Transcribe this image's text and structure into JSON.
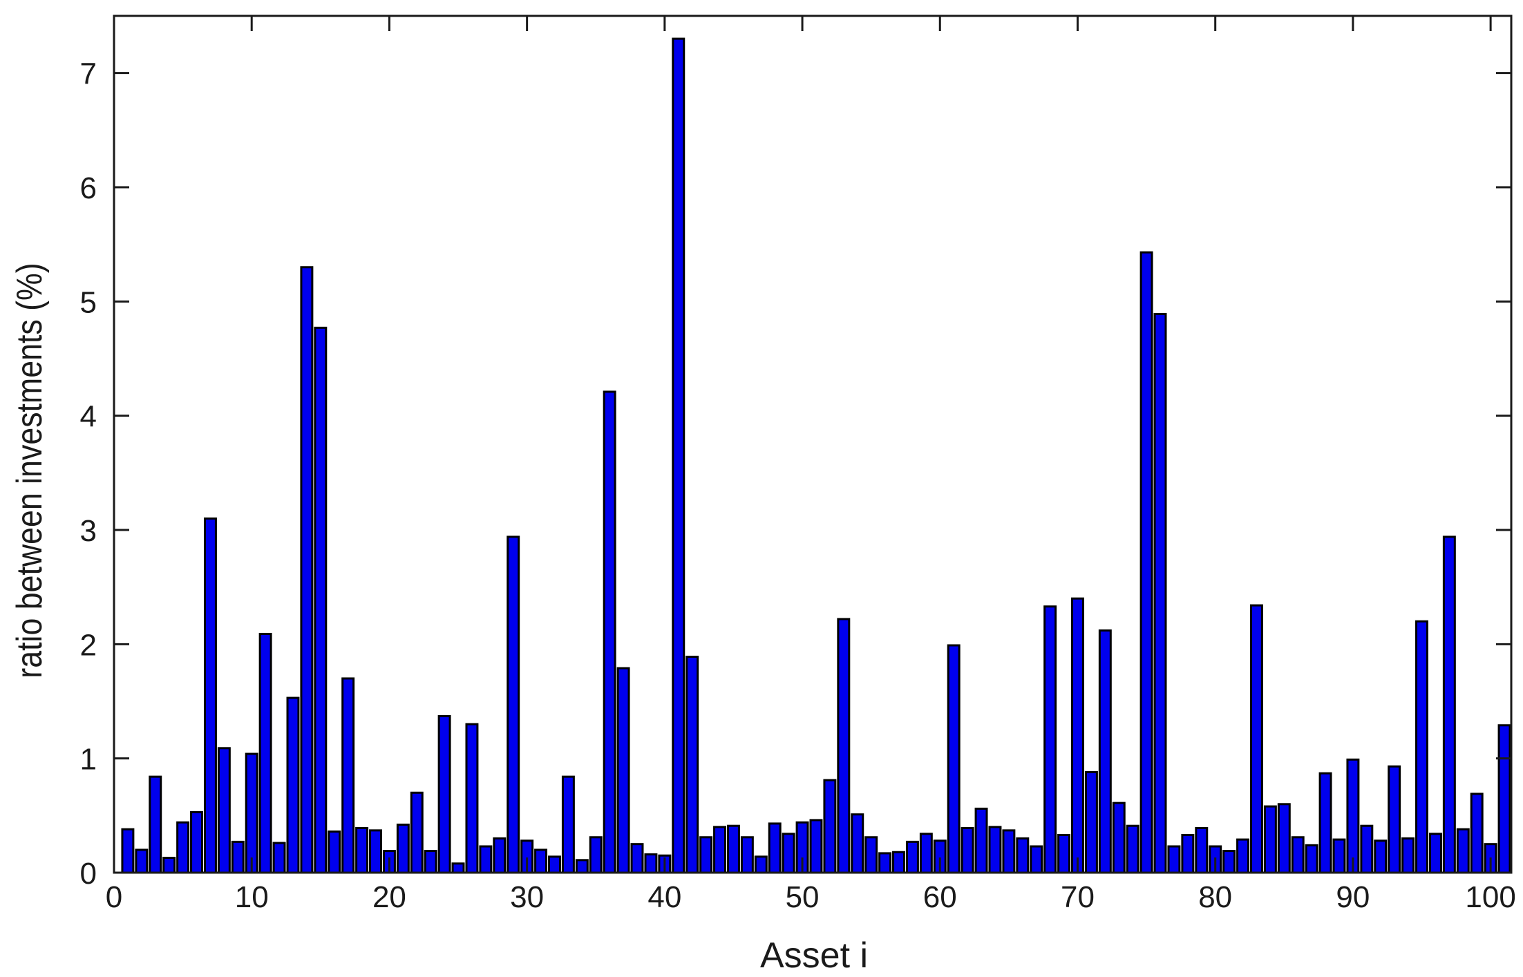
{
  "chart_data": {
    "type": "bar",
    "title": "",
    "xlabel": "Asset i",
    "ylabel": "ratio between investments (%)",
    "xlim": [
      0,
      101.5
    ],
    "ylim": [
      0,
      7.5
    ],
    "xticks": [
      0,
      10,
      20,
      30,
      40,
      50,
      60,
      70,
      80,
      90,
      100
    ],
    "yticks": [
      0,
      1,
      2,
      3,
      4,
      5,
      6,
      7
    ],
    "grid": false,
    "legend": "none",
    "bar_color": "#0000ee",
    "edge_color": "#000000",
    "categories": [
      1,
      2,
      3,
      4,
      5,
      6,
      7,
      8,
      9,
      10,
      11,
      12,
      13,
      14,
      15,
      16,
      17,
      18,
      19,
      20,
      21,
      22,
      23,
      24,
      25,
      26,
      27,
      28,
      29,
      30,
      31,
      32,
      33,
      34,
      35,
      36,
      37,
      38,
      39,
      40,
      41,
      42,
      43,
      44,
      45,
      46,
      47,
      48,
      49,
      50,
      51,
      52,
      53,
      54,
      55,
      56,
      57,
      58,
      59,
      60,
      61,
      62,
      63,
      64,
      65,
      66,
      67,
      68,
      69,
      70,
      71,
      72,
      73,
      74,
      75,
      76,
      77,
      78,
      79,
      80,
      81,
      82,
      83,
      84,
      85,
      86,
      87,
      88,
      89,
      90,
      91,
      92,
      93,
      94,
      95,
      96,
      97,
      98,
      99,
      100,
      101
    ],
    "values": [
      0.38,
      0.2,
      0.84,
      0.13,
      0.44,
      0.53,
      3.1,
      1.09,
      0.27,
      1.04,
      2.09,
      0.26,
      1.53,
      5.3,
      4.77,
      0.36,
      1.7,
      0.39,
      0.37,
      0.19,
      0.42,
      0.7,
      0.19,
      1.37,
      0.08,
      1.3,
      0.23,
      0.3,
      2.94,
      0.28,
      0.2,
      0.14,
      0.84,
      0.11,
      0.31,
      4.21,
      1.79,
      0.25,
      0.16,
      0.15,
      7.3,
      1.89,
      0.31,
      0.4,
      0.41,
      0.31,
      0.14,
      0.43,
      0.34,
      0.44,
      0.46,
      0.81,
      2.22,
      0.51,
      0.31,
      0.17,
      0.18,
      0.27,
      0.34,
      0.28,
      1.99,
      0.39,
      0.56,
      0.4,
      0.37,
      0.3,
      0.23,
      2.33,
      0.33,
      2.4,
      0.88,
      2.12,
      0.61,
      0.41,
      5.43,
      4.89,
      0.23,
      0.33,
      0.39,
      0.23,
      0.19,
      0.29,
      2.34,
      0.58,
      0.6,
      0.31,
      0.24,
      0.87,
      0.29,
      0.99,
      0.41,
      0.28,
      0.93,
      0.3,
      2.2,
      0.34,
      2.94,
      0.38,
      0.69,
      0.25,
      1.29
    ]
  }
}
